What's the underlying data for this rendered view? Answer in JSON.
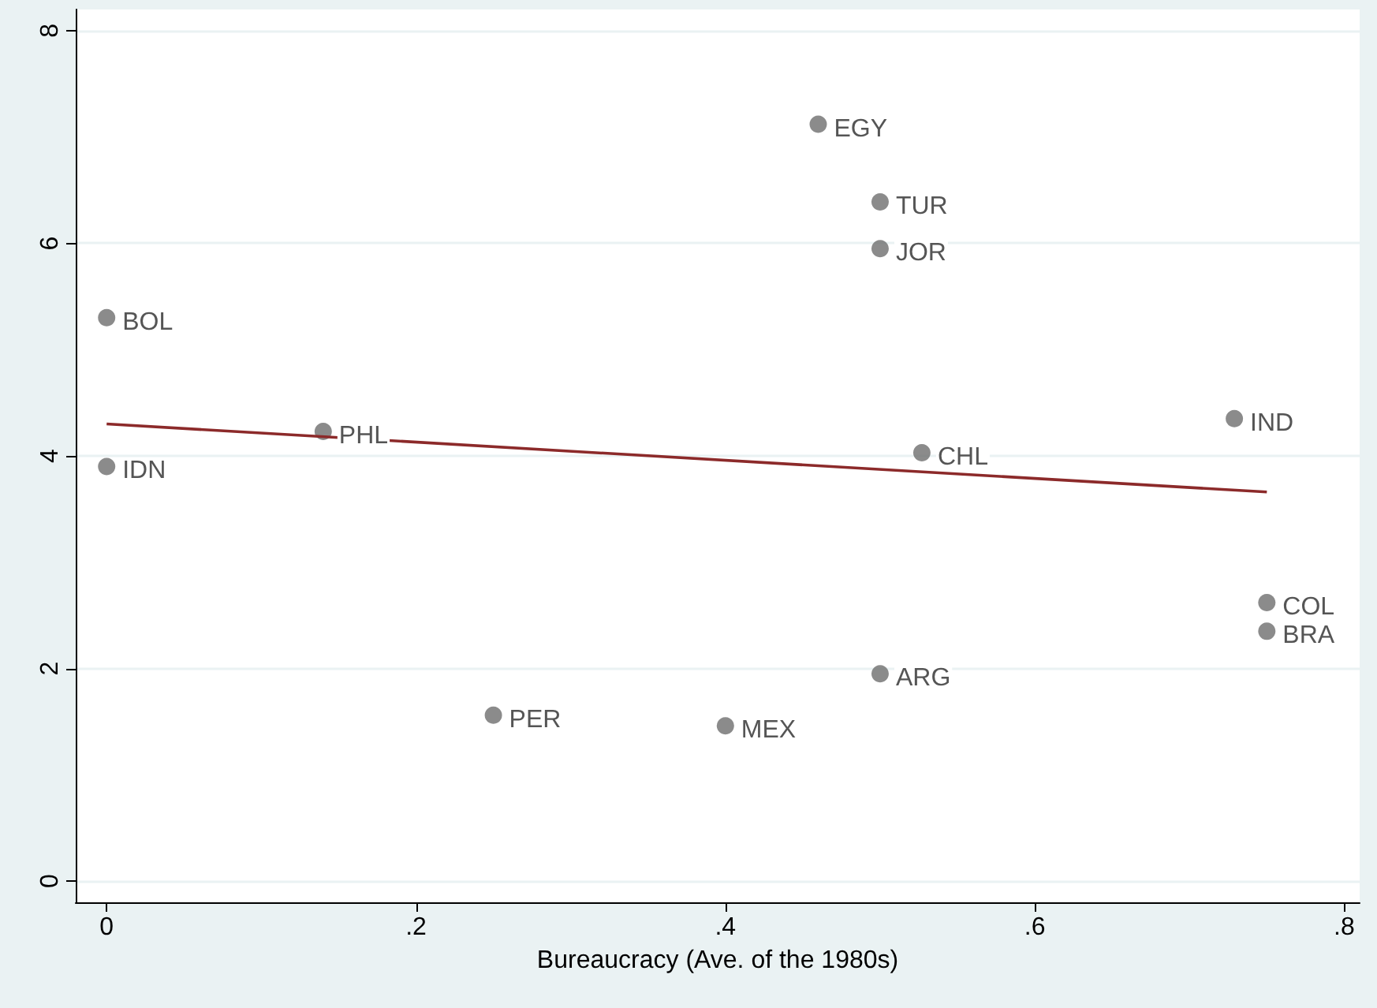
{
  "chart_data": {
    "type": "scatter",
    "xlabel": "Bureaucracy (Ave. of the 1980s)",
    "xlim": [
      -0.02,
      0.81
    ],
    "ylim": [
      -0.2,
      8.2
    ],
    "xticks": [
      {
        "value": 0,
        "label": "0"
      },
      {
        "value": 0.2,
        "label": ".2"
      },
      {
        "value": 0.4,
        "label": ".4"
      },
      {
        "value": 0.6,
        "label": ".6"
      },
      {
        "value": 0.8,
        "label": ".8"
      }
    ],
    "yticks": [
      0,
      2,
      4,
      6,
      8
    ],
    "grid": "y",
    "series": [
      {
        "marker": "circle",
        "color": "#6e6e6e",
        "x": [
          0,
          0,
          0.14,
          0.25,
          0.4,
          0.46,
          0.5,
          0.5,
          0.5,
          0.527,
          0.729,
          0.75,
          0.75
        ],
        "values": [
          5.3,
          3.9,
          4.23,
          1.56,
          1.46,
          7.12,
          6.39,
          5.95,
          1.95,
          4.03,
          4.35,
          2.62,
          2.35
        ]
      },
      {
        "type": "line",
        "color": "#8c2a2a",
        "x": [
          0,
          0.75
        ],
        "values": [
          4.3,
          3.66
        ]
      }
    ],
    "annotations": [
      {
        "text": "BOL",
        "x": 0,
        "y": 5.3
      },
      {
        "text": "IDN",
        "x": 0,
        "y": 3.9
      },
      {
        "text": "PHL",
        "x": 0.14,
        "y": 4.23
      },
      {
        "text": "PER",
        "x": 0.25,
        "y": 1.56
      },
      {
        "text": "MEX",
        "x": 0.4,
        "y": 1.46
      },
      {
        "text": "EGY",
        "x": 0.46,
        "y": 7.12
      },
      {
        "text": "TUR",
        "x": 0.5,
        "y": 6.39
      },
      {
        "text": "JOR",
        "x": 0.5,
        "y": 5.95
      },
      {
        "text": "ARG",
        "x": 0.5,
        "y": 1.95
      },
      {
        "text": "CHL",
        "x": 0.527,
        "y": 4.03
      },
      {
        "text": "IND",
        "x": 0.729,
        "y": 4.35
      },
      {
        "text": "COL",
        "x": 0.75,
        "y": 2.62
      },
      {
        "text": "BRA",
        "x": 0.75,
        "y": 2.35
      }
    ]
  }
}
